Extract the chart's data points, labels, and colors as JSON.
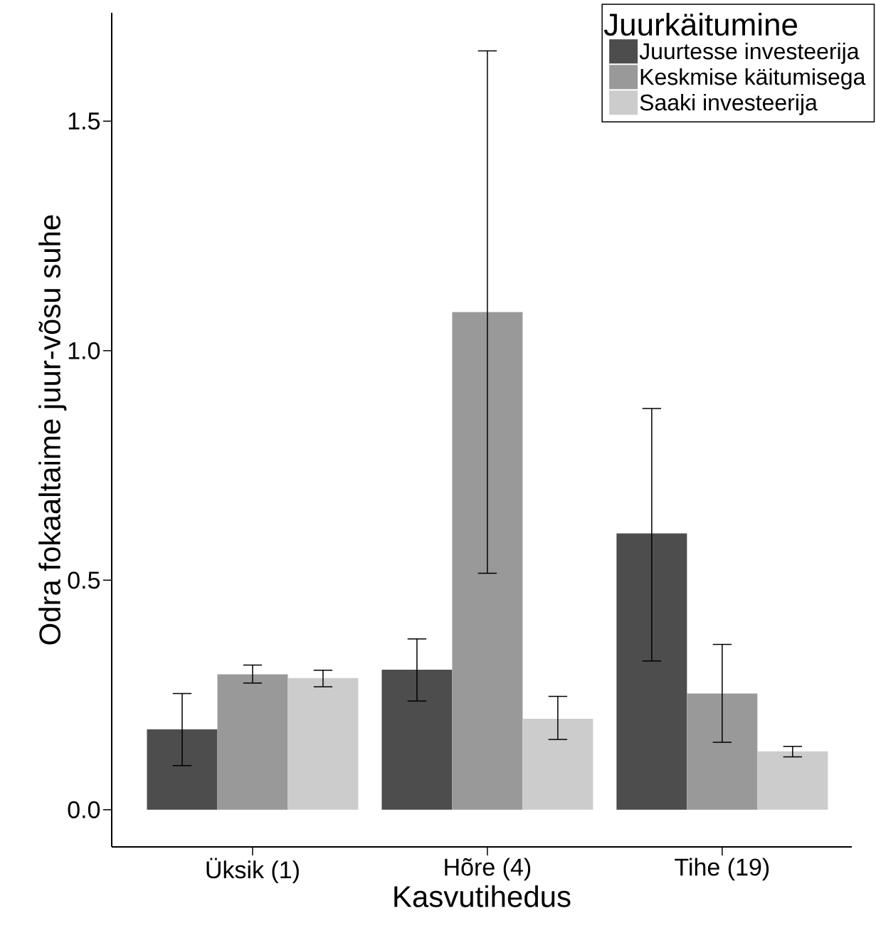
{
  "chart_data": {
    "type": "bar",
    "xlabel": "Kasvutihedus",
    "ylabel": "Odra fokaaltaime juur-võsu suhe",
    "legend_title": "Juurkäitumine",
    "categories": [
      "Üksik (1)",
      "Hõre (4)",
      "Tihe (19)"
    ],
    "ylim": [
      -0.081,
      1.736
    ],
    "yticks": [
      {
        "value": 0,
        "label": "0.0"
      },
      {
        "value": 0.5,
        "label": "0.5"
      },
      {
        "value": 1,
        "label": "1.0"
      },
      {
        "value": 1.5,
        "label": "1.5"
      }
    ],
    "legend": "top right",
    "series": [
      {
        "name": "Juurtesse investeerija",
        "color": "#4d4d4d",
        "values": [
          0.175,
          0.305,
          0.602
        ],
        "errors": [
          [
            0.096,
            0.253
          ],
          [
            0.237,
            0.372
          ],
          [
            0.324,
            0.874
          ]
        ]
      },
      {
        "name": "Keskmise käitumisega",
        "color": "#999999",
        "values": [
          0.295,
          1.084,
          0.253
        ],
        "errors": [
          [
            0.276,
            0.315
          ],
          [
            0.515,
            1.653
          ],
          [
            0.147,
            0.36
          ]
        ]
      },
      {
        "name": "Saaki investeerija",
        "color": "#cccccc",
        "values": [
          0.287,
          0.198,
          0.127
        ],
        "errors": [
          [
            0.268,
            0.304
          ],
          [
            0.153,
            0.247
          ],
          [
            0.115,
            0.138
          ]
        ]
      }
    ]
  }
}
